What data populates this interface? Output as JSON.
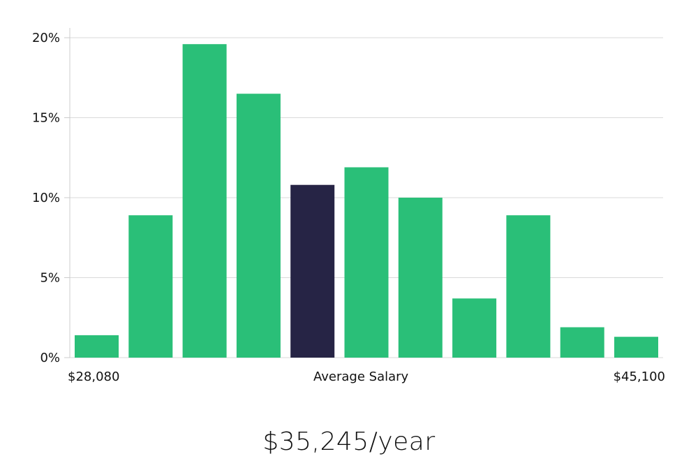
{
  "chart_data": {
    "type": "bar",
    "values": [
      1.4,
      8.9,
      19.6,
      16.5,
      10.8,
      11.9,
      10.0,
      3.7,
      8.9,
      1.9,
      1.3
    ],
    "highlight_index": 4,
    "ylim": [
      0,
      20
    ],
    "yticks": [
      0,
      5,
      10,
      15,
      20
    ],
    "ytick_labels": [
      "0%",
      "5%",
      "10%",
      "15%",
      "20%"
    ],
    "x_min_label": "$28,080",
    "x_mid_label": "Average Salary",
    "x_max_label": "$45,100",
    "grid": true,
    "colors": {
      "bar": "#2abf78",
      "highlight": "#262445",
      "grid": "#d9d9d9",
      "axis": "#cccccc"
    }
  },
  "summary": {
    "salary": "$35,245/year"
  }
}
